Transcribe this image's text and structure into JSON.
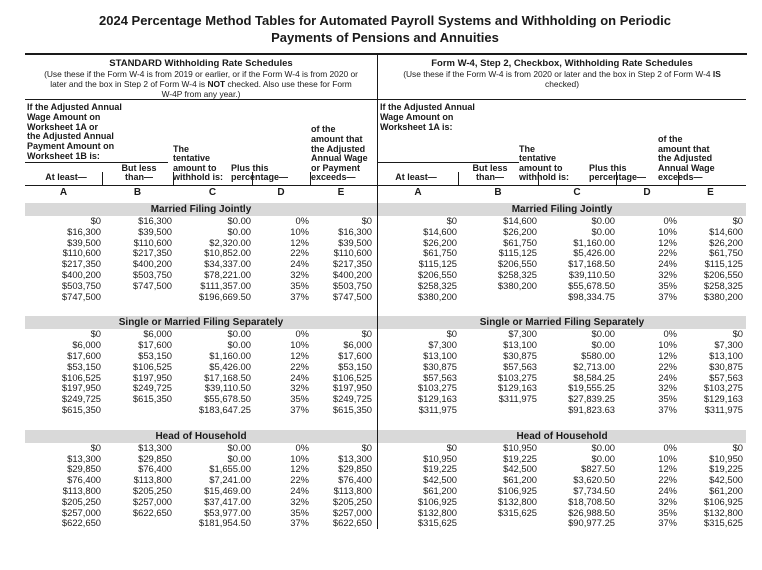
{
  "title_lines": [
    "2024 Percentage Method Tables for Automated Payroll Systems and Withholding on Periodic",
    "Payments of Pensions and Annuities"
  ],
  "schedules": [
    {
      "id": "standard",
      "heading": "STANDARD Withholding Rate Schedules",
      "note": [
        {
          "t": "(Use these if the Form W-4 is from 2019 or earlier, or if the Form W-4 is from 2020 or later and the box in Step 2 of Form W-4 is "
        },
        {
          "t": "NOT",
          "b": true
        },
        {
          "t": " checked. Also use these for Form W-4P from any year.)"
        }
      ],
      "condition_lines": [
        "If the Adjusted Annual",
        "Wage Amount on",
        "Worksheet 1A or",
        "the Adjusted Annual",
        "Payment Amount on",
        "Worksheet 1B is:"
      ],
      "col_labels": {
        "a": [
          "At least—"
        ],
        "b": [
          "But less",
          "than—"
        ],
        "c": [
          "The",
          "tentative",
          "amount to",
          "withhold is:"
        ],
        "d": [
          "Plus this",
          "percentage—"
        ],
        "e": [
          "of the",
          "amount that",
          "the Adjusted",
          "Annual Wage",
          "or Payment",
          "exceeds—"
        ]
      },
      "letters": [
        "A",
        "B",
        "C",
        "D",
        "E"
      ],
      "sections": [
        {
          "name": "Married Filing Jointly",
          "rows": [
            [
              "$0",
              "$16,300",
              "$0.00",
              "0%",
              "$0"
            ],
            [
              "$16,300",
              "$39,500",
              "$0.00",
              "10%",
              "$16,300"
            ],
            [
              "$39,500",
              "$110,600",
              "$2,320.00",
              "12%",
              "$39,500"
            ],
            [
              "$110,600",
              "$217,350",
              "$10,852.00",
              "22%",
              "$110,600"
            ],
            [
              "$217,350",
              "$400,200",
              "$34,337.00",
              "24%",
              "$217,350"
            ],
            [
              "$400,200",
              "$503,750",
              "$78,221.00",
              "32%",
              "$400,200"
            ],
            [
              "$503,750",
              "$747,500",
              "$111,357.00",
              "35%",
              "$503,750"
            ],
            [
              "$747,500",
              "",
              "$196,669.50",
              "37%",
              "$747,500"
            ]
          ]
        },
        {
          "name": "Single or Married Filing Separately",
          "rows": [
            [
              "$0",
              "$6,000",
              "$0.00",
              "0%",
              "$0"
            ],
            [
              "$6,000",
              "$17,600",
              "$0.00",
              "10%",
              "$6,000"
            ],
            [
              "$17,600",
              "$53,150",
              "$1,160.00",
              "12%",
              "$17,600"
            ],
            [
              "$53,150",
              "$106,525",
              "$5,426.00",
              "22%",
              "$53,150"
            ],
            [
              "$106,525",
              "$197,950",
              "$17,168.50",
              "24%",
              "$106,525"
            ],
            [
              "$197,950",
              "$249,725",
              "$39,110.50",
              "32%",
              "$197,950"
            ],
            [
              "$249,725",
              "$615,350",
              "$55,678.50",
              "35%",
              "$249,725"
            ],
            [
              "$615,350",
              "",
              "$183,647.25",
              "37%",
              "$615,350"
            ]
          ]
        },
        {
          "name": "Head of Household",
          "rows": [
            [
              "$0",
              "$13,300",
              "$0.00",
              "0%",
              "$0"
            ],
            [
              "$13,300",
              "$29,850",
              "$0.00",
              "10%",
              "$13,300"
            ],
            [
              "$29,850",
              "$76,400",
              "$1,655.00",
              "12%",
              "$29,850"
            ],
            [
              "$76,400",
              "$113,800",
              "$7,241.00",
              "22%",
              "$76,400"
            ],
            [
              "$113,800",
              "$205,250",
              "$15,469.00",
              "24%",
              "$113,800"
            ],
            [
              "$205,250",
              "$257,000",
              "$37,417.00",
              "32%",
              "$205,250"
            ],
            [
              "$257,000",
              "$622,650",
              "$53,977.00",
              "35%",
              "$257,000"
            ],
            [
              "$622,650",
              "",
              "$181,954.50",
              "37%",
              "$622,650"
            ]
          ]
        }
      ]
    },
    {
      "id": "checkbox",
      "heading": "Form W-4, Step 2, Checkbox, Withholding Rate Schedules",
      "note": [
        {
          "t": "(Use these if the Form W-4 is from 2020 or later and the box in Step 2 of Form W-4 "
        },
        {
          "t": "IS",
          "b": true
        },
        {
          "t": " checked)"
        }
      ],
      "condition_lines": [
        "If the Adjusted Annual",
        "Wage Amount on",
        "Worksheet 1A is:"
      ],
      "col_labels": {
        "a": [
          "At least—"
        ],
        "b": [
          "But less",
          "than—"
        ],
        "c": [
          "The",
          "tentative",
          "amount to",
          "withhold is:"
        ],
        "d": [
          "Plus this",
          "percentage—"
        ],
        "e": [
          "of the",
          "amount that",
          "the Adjusted",
          "Annual Wage",
          "exceeds—"
        ]
      },
      "letters": [
        "A",
        "B",
        "C",
        "D",
        "E"
      ],
      "sections": [
        {
          "name": "Married Filing Jointly",
          "rows": [
            [
              "$0",
              "$14,600",
              "$0.00",
              "0%",
              "$0"
            ],
            [
              "$14,600",
              "$26,200",
              "$0.00",
              "10%",
              "$14,600"
            ],
            [
              "$26,200",
              "$61,750",
              "$1,160.00",
              "12%",
              "$26,200"
            ],
            [
              "$61,750",
              "$115,125",
              "$5,426.00",
              "22%",
              "$61,750"
            ],
            [
              "$115,125",
              "$206,550",
              "$17,168.50",
              "24%",
              "$115,125"
            ],
            [
              "$206,550",
              "$258,325",
              "$39,110.50",
              "32%",
              "$206,550"
            ],
            [
              "$258,325",
              "$380,200",
              "$55,678.50",
              "35%",
              "$258,325"
            ],
            [
              "$380,200",
              "",
              "$98,334.75",
              "37%",
              "$380,200"
            ]
          ]
        },
        {
          "name": "Single or Married Filing Separately",
          "rows": [
            [
              "$0",
              "$7,300",
              "$0.00",
              "0%",
              "$0"
            ],
            [
              "$7,300",
              "$13,100",
              "$0.00",
              "10%",
              "$7,300"
            ],
            [
              "$13,100",
              "$30,875",
              "$580.00",
              "12%",
              "$13,100"
            ],
            [
              "$30,875",
              "$57,563",
              "$2,713.00",
              "22%",
              "$30,875"
            ],
            [
              "$57,563",
              "$103,275",
              "$8,584.25",
              "24%",
              "$57,563"
            ],
            [
              "$103,275",
              "$129,163",
              "$19,555.25",
              "32%",
              "$103,275"
            ],
            [
              "$129,163",
              "$311,975",
              "$27,839.25",
              "35%",
              "$129,163"
            ],
            [
              "$311,975",
              "",
              "$91,823.63",
              "37%",
              "$311,975"
            ]
          ]
        },
        {
          "name": "Head of Household",
          "rows": [
            [
              "$0",
              "$10,950",
              "$0.00",
              "0%",
              "$0"
            ],
            [
              "$10,950",
              "$19,225",
              "$0.00",
              "10%",
              "$10,950"
            ],
            [
              "$19,225",
              "$42,500",
              "$827.50",
              "12%",
              "$19,225"
            ],
            [
              "$42,500",
              "$61,200",
              "$3,620.50",
              "22%",
              "$42,500"
            ],
            [
              "$61,200",
              "$106,925",
              "$7,734.50",
              "24%",
              "$61,200"
            ],
            [
              "$106,925",
              "$132,800",
              "$18,708.50",
              "32%",
              "$106,925"
            ],
            [
              "$132,800",
              "$315,625",
              "$26,988.50",
              "35%",
              "$132,800"
            ],
            [
              "$315,625",
              "",
              "$90,977.25",
              "37%",
              "$315,625"
            ]
          ]
        }
      ]
    }
  ]
}
